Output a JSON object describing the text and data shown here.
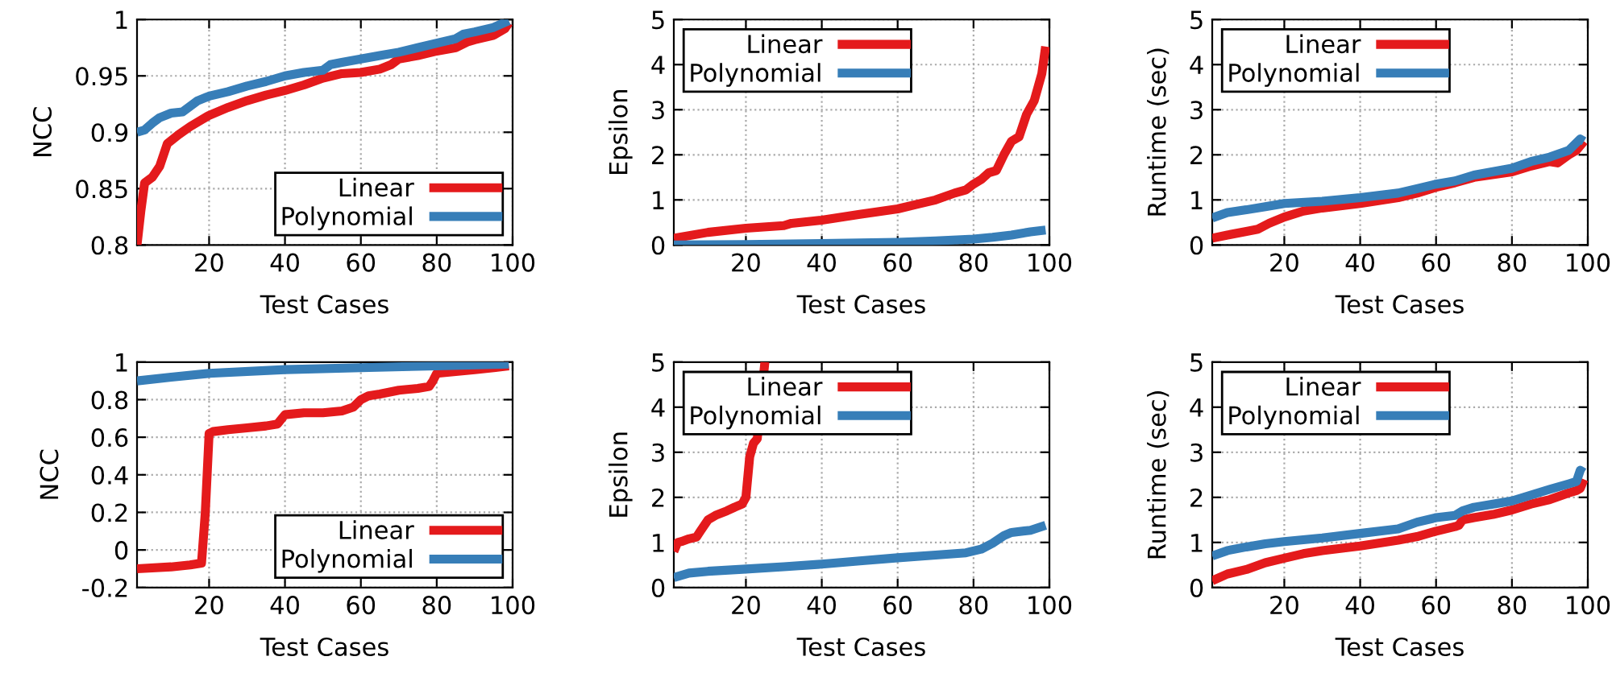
{
  "chart_data": [
    {
      "type": "line",
      "xlabel": "Test Cases",
      "ylabel": "NCC",
      "xlim": [
        1,
        100
      ],
      "xticks": [
        20,
        40,
        60,
        80,
        100
      ],
      "ylim": [
        0.8,
        1
      ],
      "yticks": [
        0.8,
        0.85,
        0.9,
        0.95,
        1
      ],
      "grid": true,
      "legend": "bottom right",
      "line_style": "solid",
      "marker": "none",
      "series": [
        {
          "name": "Linear",
          "color": "#e41a1c",
          "x": [
            1,
            2,
            3,
            5,
            7,
            9,
            12,
            15,
            20,
            25,
            30,
            35,
            40,
            45,
            50,
            55,
            60,
            65,
            68,
            70,
            75,
            80,
            85,
            88,
            90,
            95,
            98,
            99
          ],
          "values": [
            0.8,
            0.83,
            0.855,
            0.86,
            0.87,
            0.89,
            0.898,
            0.905,
            0.915,
            0.922,
            0.928,
            0.933,
            0.937,
            0.942,
            0.948,
            0.952,
            0.953,
            0.956,
            0.96,
            0.965,
            0.968,
            0.972,
            0.975,
            0.98,
            0.982,
            0.986,
            0.992,
            0.997
          ]
        },
        {
          "name": "Polynomial",
          "color": "#377eb8",
          "x": [
            1,
            3,
            5,
            7,
            10,
            13,
            15,
            17,
            20,
            25,
            30,
            35,
            40,
            45,
            50,
            52,
            55,
            60,
            65,
            70,
            75,
            80,
            85,
            87,
            90,
            95,
            99
          ],
          "values": [
            0.9,
            0.902,
            0.908,
            0.913,
            0.917,
            0.918,
            0.923,
            0.928,
            0.932,
            0.936,
            0.941,
            0.945,
            0.95,
            0.953,
            0.955,
            0.96,
            0.962,
            0.965,
            0.968,
            0.971,
            0.975,
            0.979,
            0.983,
            0.987,
            0.989,
            0.993,
            0.999
          ]
        }
      ]
    },
    {
      "type": "line",
      "xlabel": "Test Cases",
      "ylabel": "Epsilon",
      "xlim": [
        1,
        100
      ],
      "xticks": [
        20,
        40,
        60,
        80,
        100
      ],
      "ylim": [
        0,
        5
      ],
      "yticks": [
        0,
        1,
        2,
        3,
        4,
        5
      ],
      "grid": true,
      "legend": "top left",
      "line_style": "solid",
      "marker": "none",
      "series": [
        {
          "name": "Linear",
          "color": "#e41a1c",
          "x": [
            1,
            10,
            20,
            30,
            32,
            40,
            50,
            60,
            65,
            70,
            75,
            78,
            80,
            82,
            84,
            86,
            88,
            90,
            92,
            94,
            96,
            98,
            99
          ],
          "values": [
            0.15,
            0.28,
            0.37,
            0.43,
            0.48,
            0.55,
            0.68,
            0.8,
            0.9,
            1.0,
            1.15,
            1.22,
            1.35,
            1.45,
            1.6,
            1.65,
            2.0,
            2.3,
            2.4,
            2.9,
            3.2,
            3.8,
            4.4
          ]
        },
        {
          "name": "Polynomial",
          "color": "#377eb8",
          "x": [
            1,
            20,
            40,
            60,
            70,
            80,
            85,
            90,
            95,
            99
          ],
          "values": [
            0.0,
            0.01,
            0.03,
            0.06,
            0.09,
            0.13,
            0.17,
            0.22,
            0.29,
            0.33
          ]
        }
      ]
    },
    {
      "type": "line",
      "xlabel": "Test Cases",
      "ylabel": "Runtime (sec)",
      "xlim": [
        1,
        100
      ],
      "xticks": [
        20,
        40,
        60,
        80,
        100
      ],
      "ylim": [
        0,
        5
      ],
      "yticks": [
        0,
        1,
        2,
        3,
        4,
        5
      ],
      "grid": true,
      "legend": "top left",
      "line_style": "solid",
      "marker": "none",
      "series": [
        {
          "name": "Linear",
          "color": "#e41a1c",
          "x": [
            1,
            5,
            10,
            13,
            16,
            20,
            25,
            30,
            40,
            50,
            55,
            60,
            65,
            70,
            80,
            85,
            90,
            92,
            95,
            97,
            99
          ],
          "values": [
            0.15,
            0.22,
            0.3,
            0.35,
            0.48,
            0.62,
            0.75,
            0.82,
            0.92,
            1.05,
            1.15,
            1.28,
            1.38,
            1.5,
            1.62,
            1.75,
            1.85,
            1.82,
            2.0,
            2.1,
            2.3
          ]
        },
        {
          "name": "Polynomial",
          "color": "#377eb8",
          "x": [
            1,
            5,
            10,
            15,
            20,
            30,
            40,
            50,
            55,
            60,
            65,
            70,
            80,
            85,
            90,
            95,
            98,
            99
          ],
          "values": [
            0.6,
            0.72,
            0.78,
            0.85,
            0.92,
            0.97,
            1.05,
            1.15,
            1.25,
            1.35,
            1.42,
            1.55,
            1.7,
            1.85,
            1.95,
            2.1,
            2.35,
            2.3
          ]
        }
      ]
    },
    {
      "type": "line",
      "xlabel": "Test Cases",
      "ylabel": "NCC",
      "xlim": [
        1,
        100
      ],
      "xticks": [
        20,
        40,
        60,
        80,
        100
      ],
      "ylim": [
        -0.2,
        1
      ],
      "yticks": [
        -0.2,
        0,
        0.2,
        0.4,
        0.6,
        0.8,
        1
      ],
      "grid": true,
      "legend": "bottom right",
      "line_style": "solid",
      "marker": "none",
      "series": [
        {
          "name": "Linear",
          "color": "#e41a1c",
          "x": [
            1,
            10,
            15,
            18,
            19,
            20,
            21,
            25,
            30,
            35,
            38,
            40,
            45,
            50,
            55,
            58,
            60,
            62,
            65,
            70,
            75,
            78,
            79,
            80,
            85,
            90,
            95,
            99
          ],
          "values": [
            -0.1,
            -0.09,
            -0.08,
            -0.07,
            0.2,
            0.62,
            0.63,
            0.64,
            0.65,
            0.66,
            0.67,
            0.72,
            0.73,
            0.73,
            0.74,
            0.76,
            0.8,
            0.82,
            0.83,
            0.85,
            0.86,
            0.87,
            0.9,
            0.94,
            0.95,
            0.96,
            0.97,
            0.98
          ]
        },
        {
          "name": "Polynomial",
          "color": "#377eb8",
          "x": [
            1,
            10,
            20,
            40,
            60,
            80,
            99
          ],
          "values": [
            0.9,
            0.92,
            0.94,
            0.96,
            0.97,
            0.98,
            0.99
          ]
        }
      ]
    },
    {
      "type": "line",
      "xlabel": "Test Cases",
      "ylabel": "Epsilon",
      "xlim": [
        1,
        100
      ],
      "xticks": [
        20,
        40,
        60,
        80,
        100
      ],
      "ylim": [
        0,
        5
      ],
      "yticks": [
        0,
        1,
        2,
        3,
        4,
        5
      ],
      "grid": true,
      "legend": "top left",
      "line_style": "solid",
      "marker": "none",
      "series": [
        {
          "name": "Linear",
          "color": "#e41a1c",
          "x": [
            1,
            2,
            3,
            5,
            7,
            8,
            10,
            12,
            15,
            17,
            19,
            20,
            21,
            22,
            23,
            25
          ],
          "values": [
            0.8,
            1.0,
            1.02,
            1.08,
            1.12,
            1.25,
            1.5,
            1.6,
            1.7,
            1.78,
            1.85,
            2.0,
            2.9,
            3.2,
            3.3,
            5.0
          ]
        },
        {
          "name": "Polynomial",
          "color": "#377eb8",
          "x": [
            1,
            5,
            10,
            20,
            30,
            40,
            50,
            60,
            70,
            78,
            82,
            85,
            88,
            90,
            95,
            99
          ],
          "values": [
            0.22,
            0.32,
            0.36,
            0.41,
            0.46,
            0.52,
            0.59,
            0.66,
            0.72,
            0.77,
            0.85,
            0.98,
            1.15,
            1.22,
            1.27,
            1.38
          ]
        }
      ]
    },
    {
      "type": "line",
      "xlabel": "Test Cases",
      "ylabel": "Runtime (sec)",
      "xlim": [
        1,
        100
      ],
      "xticks": [
        20,
        40,
        60,
        80,
        100
      ],
      "ylim": [
        0,
        5
      ],
      "yticks": [
        0,
        1,
        2,
        3,
        4,
        5
      ],
      "grid": true,
      "legend": "top left",
      "line_style": "solid",
      "marker": "none",
      "series": [
        {
          "name": "Linear",
          "color": "#e41a1c",
          "x": [
            1,
            5,
            10,
            15,
            20,
            25,
            30,
            40,
            50,
            55,
            60,
            65,
            66,
            67,
            70,
            75,
            80,
            85,
            90,
            95,
            97,
            98,
            99
          ],
          "values": [
            0.15,
            0.3,
            0.4,
            0.55,
            0.65,
            0.75,
            0.82,
            0.92,
            1.05,
            1.13,
            1.25,
            1.35,
            1.38,
            1.5,
            1.55,
            1.62,
            1.72,
            1.85,
            1.95,
            2.1,
            2.15,
            2.2,
            2.4
          ]
        },
        {
          "name": "Polynomial",
          "color": "#377eb8",
          "x": [
            1,
            5,
            10,
            15,
            20,
            30,
            40,
            50,
            55,
            60,
            65,
            67,
            70,
            75,
            80,
            85,
            90,
            95,
            97,
            98,
            99
          ],
          "values": [
            0.7,
            0.82,
            0.9,
            0.97,
            1.02,
            1.1,
            1.2,
            1.3,
            1.45,
            1.55,
            1.6,
            1.7,
            1.78,
            1.85,
            1.92,
            2.05,
            2.18,
            2.3,
            2.35,
            2.6,
            2.55
          ]
        }
      ]
    }
  ]
}
